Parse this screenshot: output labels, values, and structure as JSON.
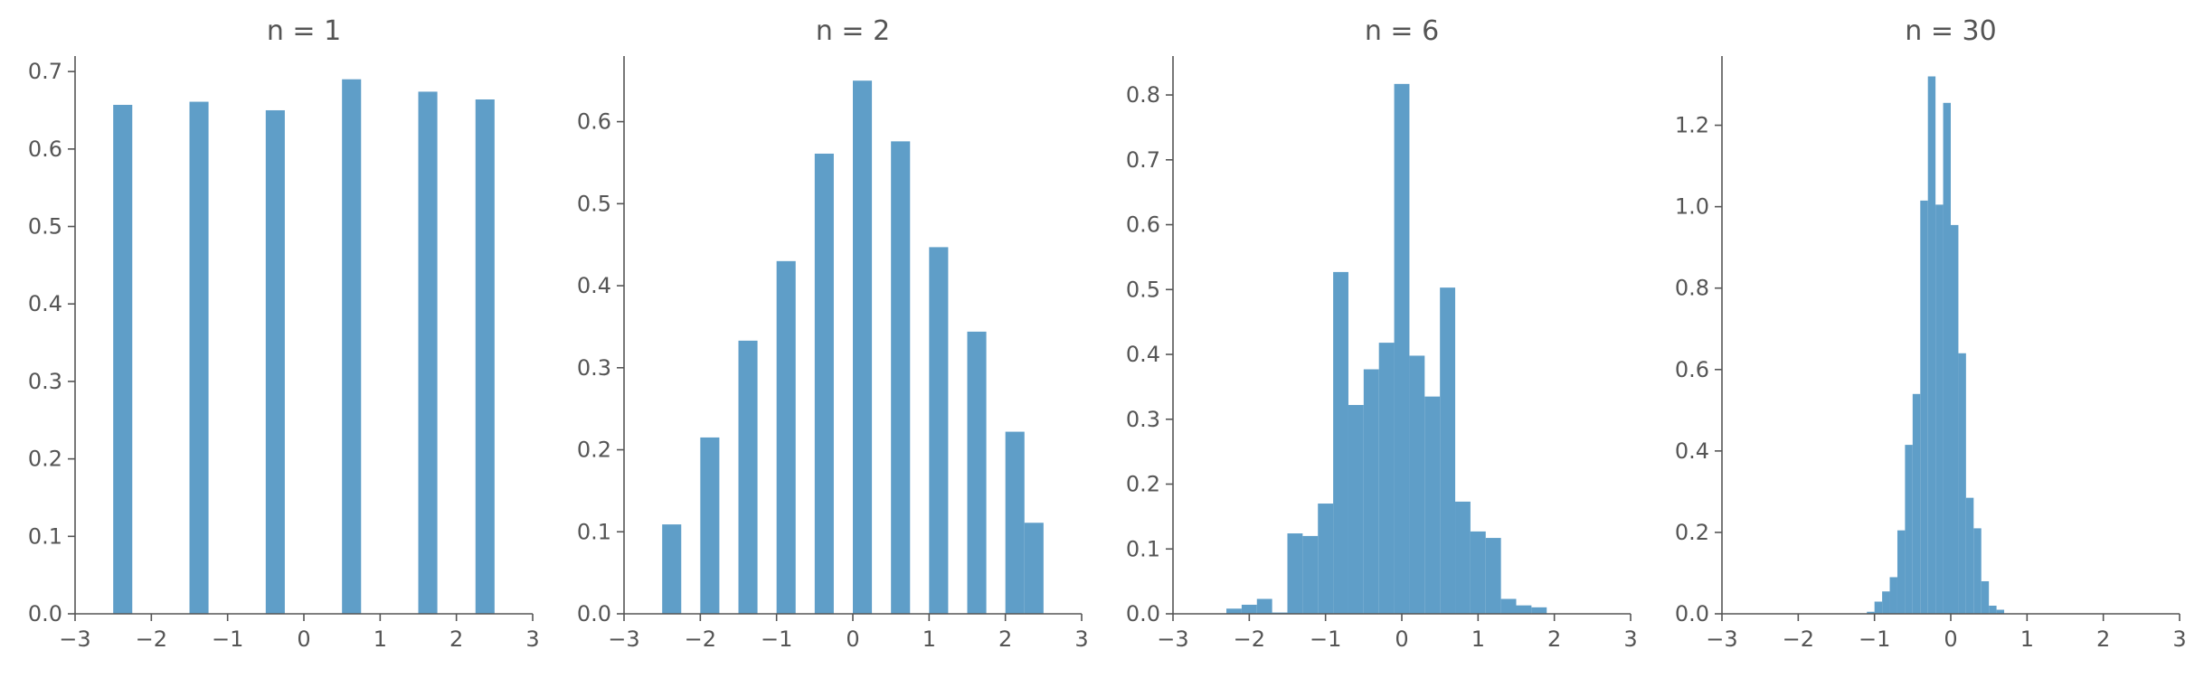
{
  "style": {
    "bar_color": "#5f9ec8",
    "axis_color": "#555555",
    "text_color": "#555555"
  },
  "chart_data": [
    {
      "type": "bar",
      "title": "n = 1",
      "xlim": [
        -3,
        3
      ],
      "ylim": [
        0,
        0.72
      ],
      "xticks": [
        -3,
        -2,
        -1,
        0,
        1,
        2,
        3
      ],
      "xtick_labels": [
        "−3",
        "−2",
        "−1",
        "0",
        "1",
        "2",
        "3"
      ],
      "yticks": [
        0,
        0.1,
        0.2,
        0.3,
        0.4,
        0.5,
        0.6,
        0.7
      ],
      "ytick_labels": [
        "0.0",
        "0.1",
        "0.2",
        "0.3",
        "0.4",
        "0.5",
        "0.6",
        "0.7"
      ],
      "bins": [
        {
          "x0": -2.5,
          "x1": -2.25,
          "value": 0.657
        },
        {
          "x0": -1.5,
          "x1": -1.25,
          "value": 0.661
        },
        {
          "x0": -0.5,
          "x1": -0.25,
          "value": 0.65
        },
        {
          "x0": 0.5,
          "x1": 0.75,
          "value": 0.69
        },
        {
          "x0": 1.5,
          "x1": 1.75,
          "value": 0.674
        },
        {
          "x0": 2.25,
          "x1": 2.5,
          "value": 0.664
        }
      ]
    },
    {
      "type": "bar",
      "title": "n = 2",
      "xlim": [
        -3,
        3
      ],
      "ylim": [
        0,
        0.68
      ],
      "xticks": [
        -3,
        -2,
        -1,
        0,
        1,
        2,
        3
      ],
      "xtick_labels": [
        "−3",
        "−2",
        "−1",
        "0",
        "1",
        "2",
        "3"
      ],
      "yticks": [
        0,
        0.1,
        0.2,
        0.3,
        0.4,
        0.5,
        0.6
      ],
      "ytick_labels": [
        "0.0",
        "0.1",
        "0.2",
        "0.3",
        "0.4",
        "0.5",
        "0.6"
      ],
      "bins": [
        {
          "x0": -2.5,
          "x1": -2.25,
          "value": 0.109
        },
        {
          "x0": -2.0,
          "x1": -1.75,
          "value": 0.215
        },
        {
          "x0": -1.5,
          "x1": -1.25,
          "value": 0.333
        },
        {
          "x0": -1.0,
          "x1": -0.75,
          "value": 0.43
        },
        {
          "x0": -0.5,
          "x1": -0.25,
          "value": 0.561
        },
        {
          "x0": 0.0,
          "x1": 0.25,
          "value": 0.65
        },
        {
          "x0": 0.5,
          "x1": 0.75,
          "value": 0.576
        },
        {
          "x0": 1.0,
          "x1": 1.25,
          "value": 0.447
        },
        {
          "x0": 1.5,
          "x1": 1.75,
          "value": 0.344
        },
        {
          "x0": 2.0,
          "x1": 2.25,
          "value": 0.222
        },
        {
          "x0": 2.25,
          "x1": 2.5,
          "value": 0.111
        }
      ]
    },
    {
      "type": "bar",
      "title": "n = 6",
      "xlim": [
        -3,
        3
      ],
      "ylim": [
        0,
        0.86
      ],
      "xticks": [
        -3,
        -2,
        -1,
        0,
        1,
        2,
        3
      ],
      "xtick_labels": [
        "−3",
        "−2",
        "−1",
        "0",
        "1",
        "2",
        "3"
      ],
      "yticks": [
        0,
        0.1,
        0.2,
        0.3,
        0.4,
        0.5,
        0.6,
        0.7,
        0.8
      ],
      "ytick_labels": [
        "0.0",
        "0.1",
        "0.2",
        "0.3",
        "0.4",
        "0.5",
        "0.6",
        "0.7",
        "0.8"
      ],
      "bins": [
        {
          "x0": -2.3,
          "x1": -2.1,
          "value": 0.008
        },
        {
          "x0": -2.1,
          "x1": -1.9,
          "value": 0.014
        },
        {
          "x0": -1.9,
          "x1": -1.7,
          "value": 0.023
        },
        {
          "x0": -1.7,
          "x1": -1.5,
          "value": 0.002
        },
        {
          "x0": -1.5,
          "x1": -1.3,
          "value": 0.124
        },
        {
          "x0": -1.3,
          "x1": -1.1,
          "value": 0.12
        },
        {
          "x0": -1.1,
          "x1": -0.9,
          "value": 0.17
        },
        {
          "x0": -0.9,
          "x1": -0.7,
          "value": 0.527
        },
        {
          "x0": -0.7,
          "x1": -0.5,
          "value": 0.322
        },
        {
          "x0": -0.5,
          "x1": -0.3,
          "value": 0.377
        },
        {
          "x0": -0.3,
          "x1": -0.1,
          "value": 0.418
        },
        {
          "x0": -0.1,
          "x1": 0.1,
          "value": 0.817
        },
        {
          "x0": 0.1,
          "x1": 0.3,
          "value": 0.398
        },
        {
          "x0": 0.3,
          "x1": 0.5,
          "value": 0.335
        },
        {
          "x0": 0.5,
          "x1": 0.7,
          "value": 0.503
        },
        {
          "x0": 0.7,
          "x1": 0.9,
          "value": 0.173
        },
        {
          "x0": 0.9,
          "x1": 1.1,
          "value": 0.127
        },
        {
          "x0": 1.1,
          "x1": 1.3,
          "value": 0.117
        },
        {
          "x0": 1.3,
          "x1": 1.5,
          "value": 0.023
        },
        {
          "x0": 1.5,
          "x1": 1.7,
          "value": 0.013
        },
        {
          "x0": 1.7,
          "x1": 1.9,
          "value": 0.01
        }
      ]
    },
    {
      "type": "bar",
      "title": "n = 30",
      "xlim": [
        -3,
        3
      ],
      "ylim": [
        0,
        1.37
      ],
      "xticks": [
        -3,
        -2,
        -1,
        0,
        1,
        2,
        3
      ],
      "xtick_labels": [
        "−3",
        "−2",
        "−1",
        "0",
        "1",
        "2",
        "3"
      ],
      "yticks": [
        0,
        0.2,
        0.4,
        0.6,
        0.8,
        1.0,
        1.2
      ],
      "ytick_labels": [
        "0.0",
        "0.2",
        "0.4",
        "0.6",
        "0.8",
        "1.0",
        "1.2"
      ],
      "bins": [
        {
          "x0": -1.1,
          "x1": -1.0,
          "value": 0.005
        },
        {
          "x0": -1.0,
          "x1": -0.9,
          "value": 0.03
        },
        {
          "x0": -0.9,
          "x1": -0.8,
          "value": 0.055
        },
        {
          "x0": -0.8,
          "x1": -0.7,
          "value": 0.09
        },
        {
          "x0": -0.7,
          "x1": -0.6,
          "value": 0.205
        },
        {
          "x0": -0.6,
          "x1": -0.5,
          "value": 0.415
        },
        {
          "x0": -0.5,
          "x1": -0.4,
          "value": 0.54
        },
        {
          "x0": -0.4,
          "x1": -0.3,
          "value": 1.015
        },
        {
          "x0": -0.3,
          "x1": -0.2,
          "value": 1.32
        },
        {
          "x0": -0.2,
          "x1": -0.1,
          "value": 1.005
        },
        {
          "x0": -0.1,
          "x1": 0.0,
          "value": 1.255
        },
        {
          "x0": 0.0,
          "x1": 0.1,
          "value": 0.955
        },
        {
          "x0": 0.1,
          "x1": 0.2,
          "value": 0.64
        },
        {
          "x0": 0.2,
          "x1": 0.3,
          "value": 0.285
        },
        {
          "x0": 0.3,
          "x1": 0.4,
          "value": 0.21
        },
        {
          "x0": 0.4,
          "x1": 0.5,
          "value": 0.08
        },
        {
          "x0": 0.5,
          "x1": 0.6,
          "value": 0.02
        },
        {
          "x0": 0.6,
          "x1": 0.7,
          "value": 0.01
        }
      ]
    }
  ]
}
